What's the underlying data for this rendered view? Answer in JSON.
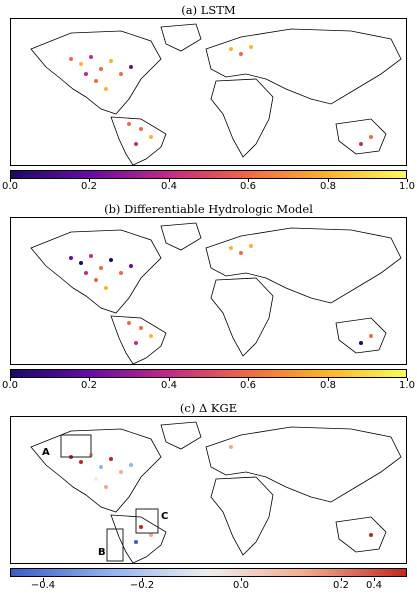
{
  "panels": [
    {
      "title": "(a) LSTM"
    },
    {
      "title": "(b) Differentiable Hydrologic Model"
    },
    {
      "title": "(c) Δ KGE"
    }
  ],
  "colorbars": [
    {
      "ticks": [
        "0.0",
        "0.2",
        "0.4",
        "0.6",
        "0.8",
        "1.0"
      ],
      "colors": [
        "#1a0a66",
        "#6a0aa6",
        "#c22a86",
        "#ef6a42",
        "#fbb32d",
        "#fafa5e"
      ]
    },
    {
      "ticks": [
        "0.0",
        "0.2",
        "0.4",
        "0.6",
        "0.8",
        "1.0"
      ],
      "colors": [
        "#1a0a66",
        "#6a0aa6",
        "#c22a86",
        "#ef6a42",
        "#fbb32d",
        "#fafa5e"
      ]
    },
    {
      "ticks": [
        "−0.4",
        "−0.2",
        "0.0",
        "0.2",
        "0.4"
      ],
      "colors": [
        "#3a5cc8",
        "#8fb2f0",
        "#eeeeee",
        "#f2a98c",
        "#c0281e"
      ]
    }
  ],
  "insets": [
    {
      "label": "A"
    },
    {
      "label": "B"
    },
    {
      "label": "C"
    }
  ]
}
